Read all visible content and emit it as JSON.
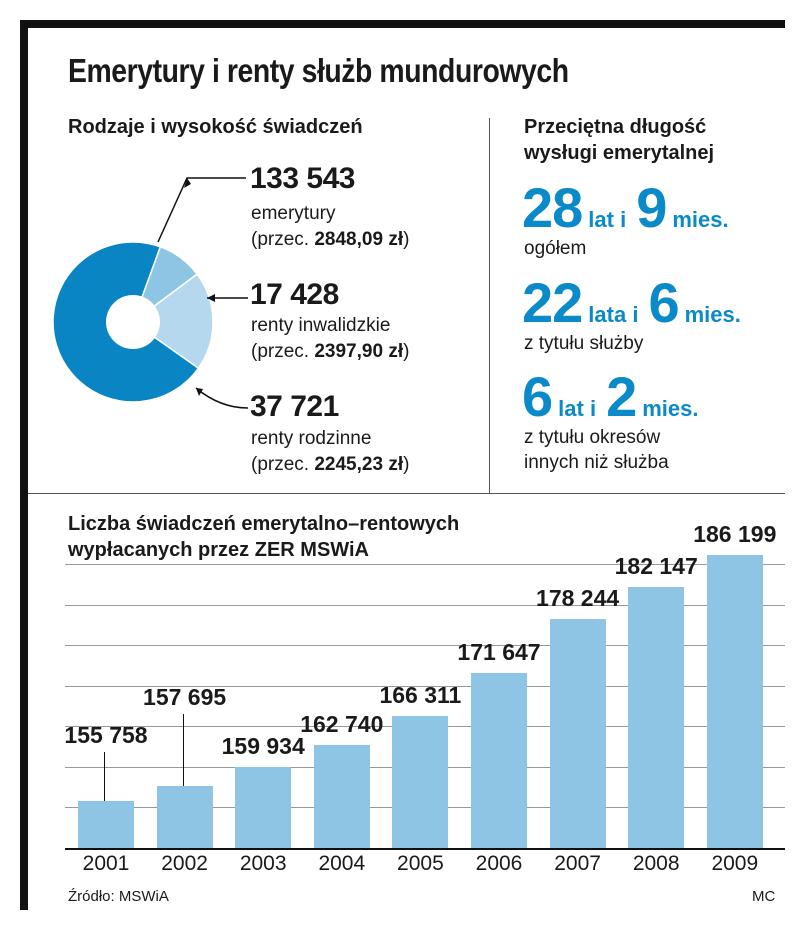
{
  "title": "Emerytury i renty służb mundurowych",
  "left_panel": {
    "heading": "Rodzaje i wysokość świadczeń",
    "categories": [
      {
        "count": "133 543",
        "name": "emerytury",
        "avg_prefix": "(przec. ",
        "avg_value": "2848,09 zł",
        "avg_suffix": ")"
      },
      {
        "count": "17 428",
        "name": "renty inwalidzkie",
        "avg_prefix": "(przec. ",
        "avg_value": "2397,90 zł",
        "avg_suffix": ")"
      },
      {
        "count": "37 721",
        "name": "renty rodzinne",
        "avg_prefix": "(przec. ",
        "avg_value": "2245,23 zł",
        "avg_suffix": ")"
      }
    ]
  },
  "right_panel": {
    "heading_line1": "Przeciętna długość",
    "heading_line2": "wysługi emerytalnej",
    "stats": [
      {
        "num1": "28",
        "unit1": "lat i",
        "num2": "9",
        "unit2": "mies.",
        "desc": [
          "ogółem"
        ]
      },
      {
        "num1": "22",
        "unit1": "lata i",
        "num2": "6",
        "unit2": "mies.",
        "desc": [
          "z tytułu służby"
        ]
      },
      {
        "num1": "6",
        "unit1": "lat i",
        "num2": "2",
        "unit2": "mies.",
        "desc": [
          "z tytułu okresów",
          "innych niż służba"
        ]
      }
    ]
  },
  "bottom": {
    "heading_line1": "Liczba świadczeń emerytalno–rentowych",
    "heading_line2": "wypłacanych przez ZER MSWiA"
  },
  "source": "Źródło: MSWiA",
  "credit": "MC",
  "colors": {
    "pie_dark": "#0a85c4",
    "pie_mid": "#8ec4e4",
    "pie_light": "#b5d8ee",
    "bar": "#8ec4e4",
    "accent": "#0a8ac9"
  },
  "chart_data": [
    {
      "type": "pie",
      "title": "Rodzaje i wysokość świadczeń",
      "donut": true,
      "categories": [
        "emerytury",
        "renty inwalidzkie",
        "renty rodzinne"
      ],
      "values": [
        133543,
        17428,
        37721
      ]
    },
    {
      "type": "bar",
      "title": "Liczba świadczeń emerytalno–rentowych wypłacanych przez ZER MSWiA",
      "categories": [
        "2001",
        "2002",
        "2003",
        "2004",
        "2005",
        "2006",
        "2007",
        "2008",
        "2009"
      ],
      "values": [
        155758,
        157695,
        159934,
        162740,
        166311,
        171647,
        178244,
        182147,
        186199
      ],
      "value_labels": [
        "155 758",
        "157 695",
        "159 934",
        "162 740",
        "166 311",
        "171 647",
        "178 244",
        "182 147",
        "186 199"
      ],
      "xlabel": "",
      "ylabel": "",
      "ylim": [
        150000,
        188000
      ],
      "grid": true
    }
  ]
}
